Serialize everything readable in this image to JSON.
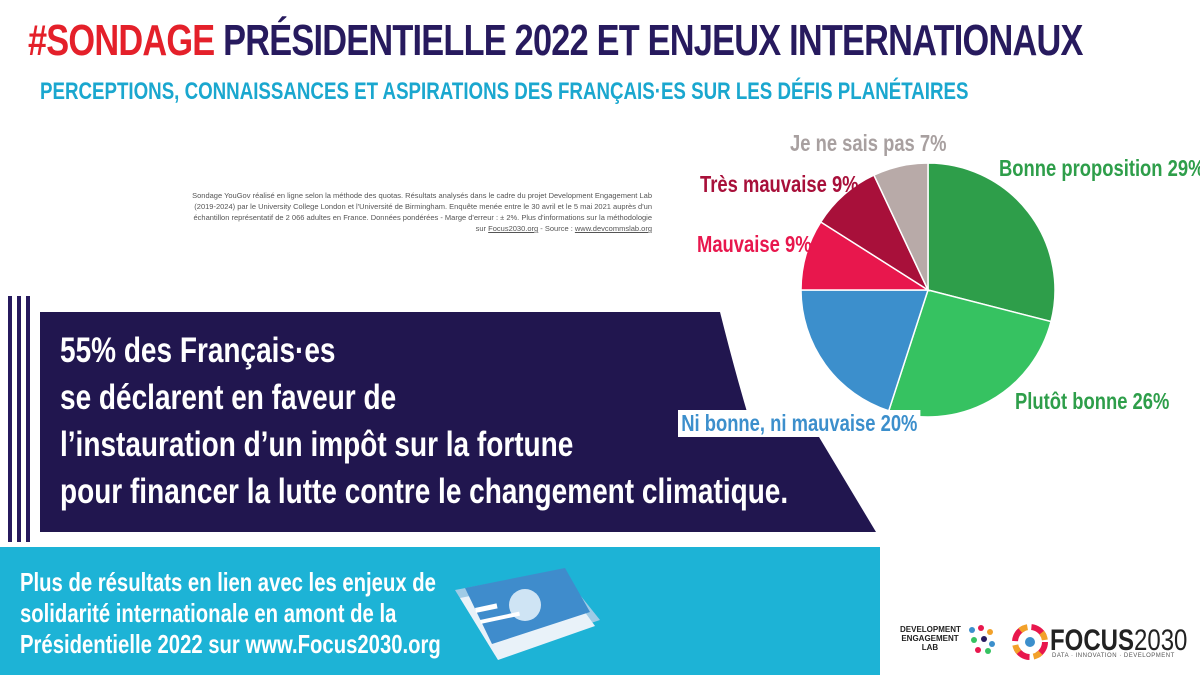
{
  "header": {
    "tag": "#SONDAGE",
    "title": "PRÉSIDENTIELLE 2022 ET ENJEUX INTERNATIONAUX",
    "subtitle": "PERCEPTIONS, CONNAISSANCES ET ASPIRATIONS DES FRANÇAIS·ES SUR LES DÉFIS PLANÉTAIRES"
  },
  "note": {
    "text": "Sondage YouGov réalisé en ligne selon la méthode des quotas. Résultats analysés dans le cadre du projet Development Engagement Lab (2019-2024) par le University College London et l'Université de Birmingham. Enquête menée entre le 30 avril et le 5 mai 2021 auprès d'un échantillon représentatif de 2 066 adultes en France. Données pondérées - Marge d'erreur : ± 2%. Plus d'informations sur la méthodologie sur ",
    "link1": "Focus2030.org",
    "mid": " - Source : ",
    "link2": "www.devcommslab.org"
  },
  "highlight": {
    "lines": [
      "55% des Français·es",
      "se déclarent en faveur de",
      "l’instauration d’un impôt sur la fortune",
      "pour financer la lutte contre le changement climatique."
    ]
  },
  "bottom": {
    "lines": [
      "Plus de résultats en lien avec les enjeux de",
      "solidarité internationale en amont de la",
      "Présidentielle 2022 sur www.Focus2030.org"
    ]
  },
  "logos": {
    "del": "DEVELOPMENT ENGAGEMENT LAB",
    "focus": "FOCUS",
    "focus_num": "2030",
    "focus_tag": "DATA · INNOVATION · DEVELOPMENT"
  },
  "chart_data": {
    "type": "pie",
    "slices": [
      {
        "label": "Bonne proposition 29%",
        "value": 29,
        "color": "#2e9e4a"
      },
      {
        "label": "Plutôt bonne 26%",
        "value": 26,
        "color": "#36c261"
      },
      {
        "label": "Ni bonne, ni mauvaise 20%",
        "value": 20,
        "color": "#3c8fcc"
      },
      {
        "label": "Mauvaise 9%",
        "value": 9,
        "color": "#e8174d"
      },
      {
        "label": "Très mauvaise 9%",
        "value": 9,
        "color": "#a8103a"
      },
      {
        "label": "Je ne sais pas 7%",
        "value": 7,
        "color": "#b8aaa8"
      }
    ],
    "label_colors": [
      "#2e9e4a",
      "#2e9e4a",
      "#3c8fcc",
      "#e8174d",
      "#a8103a",
      "#a8a0a0"
    ]
  }
}
